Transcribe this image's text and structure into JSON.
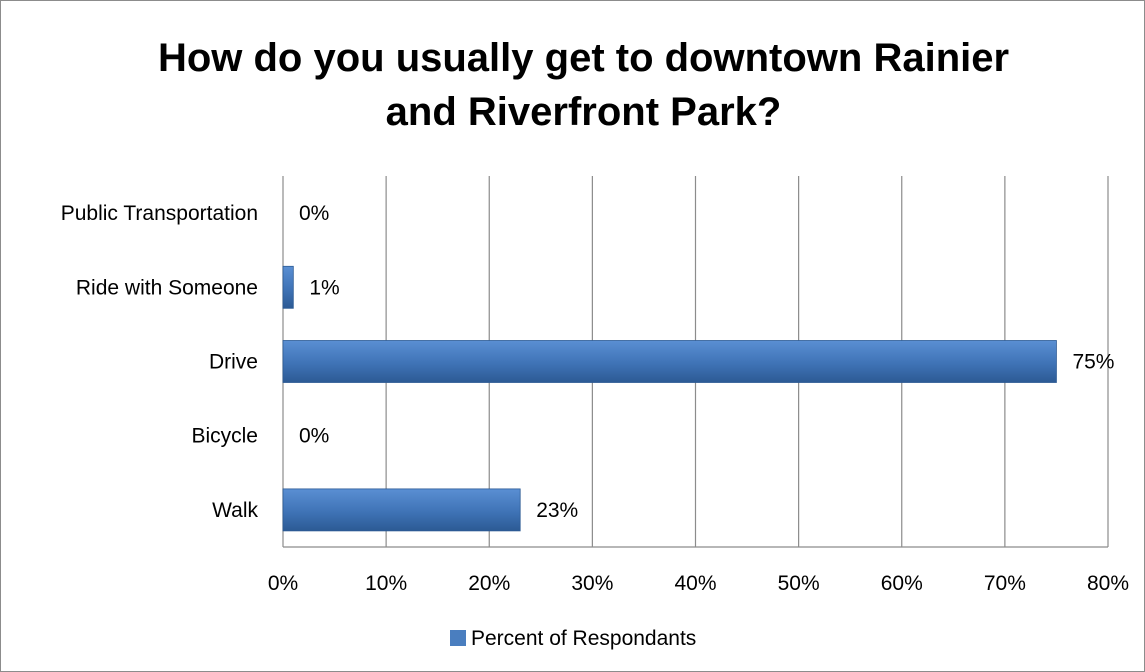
{
  "chart_data": {
    "type": "bar",
    "orientation": "horizontal",
    "title_lines": [
      "How do you usually get to downtown Rainier",
      "and Riverfront Park?"
    ],
    "categories": [
      "Public Transportation",
      "Ride with Someone",
      "Drive",
      "Bicycle",
      "Walk"
    ],
    "series": [
      {
        "name": "Percent of Respondants",
        "values": [
          0,
          1,
          75,
          0,
          23
        ],
        "labels": [
          "0%",
          "1%",
          "75%",
          "0%",
          "23%"
        ],
        "color": "#4a7ebf"
      }
    ],
    "xlim": [
      0,
      80
    ],
    "x_ticks": [
      "0%",
      "10%",
      "20%",
      "30%",
      "40%",
      "50%",
      "60%",
      "70%",
      "80%"
    ],
    "grid": true,
    "legend_position": "bottom"
  }
}
